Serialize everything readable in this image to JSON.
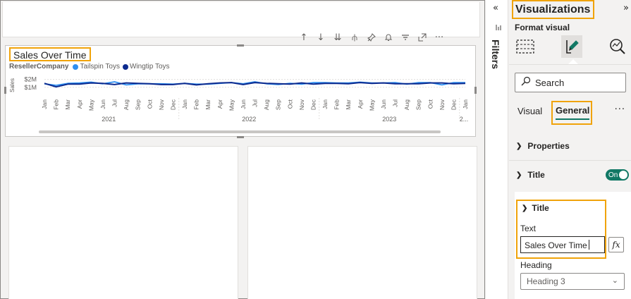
{
  "visual": {
    "title": "Sales Over Time",
    "legend": {
      "title": "ResellerCompany",
      "items": [
        {
          "label": "Tailspin Toys",
          "color": "#2e8ff0"
        },
        {
          "label": "Wingtip Toys",
          "color": "#0c2a8e"
        }
      ]
    },
    "toolbar_icons": [
      "arrow-up-icon",
      "arrow-down-icon",
      "double-arrow-down-icon",
      "hierarchy-icon",
      "pin-icon",
      "bell-icon",
      "filter-icon",
      "focus-mode-icon",
      "more-options-icon"
    ]
  },
  "chart_data": {
    "type": "line",
    "ylabel": "Sales",
    "y_ticks": [
      "$2M",
      "$1M"
    ],
    "ylim": [
      0,
      2.5
    ],
    "months": [
      "Jan",
      "Feb",
      "Mar",
      "Apr",
      "May",
      "Jun",
      "Jul",
      "Aug",
      "Sep",
      "Oct",
      "Nov",
      "Dec",
      "Jan",
      "Feb",
      "Mar",
      "Apr",
      "May",
      "Jun",
      "Jul",
      "Aug",
      "Sep",
      "Oct",
      "Nov",
      "Dec",
      "Jan",
      "Feb",
      "Mar",
      "Apr",
      "May",
      "Jun",
      "Jul",
      "Aug",
      "Sep",
      "Oct",
      "Nov",
      "Dec",
      "Jan"
    ],
    "years": [
      "2021",
      "2022",
      "2023",
      "2..."
    ],
    "series": [
      {
        "name": "Tailspin Toys",
        "color": "#2e8ff0",
        "values": [
          1.45,
          1.25,
          1.5,
          1.55,
          1.65,
          1.45,
          1.7,
          1.3,
          1.45,
          1.45,
          1.45,
          1.4,
          1.5,
          1.4,
          1.4,
          1.5,
          1.6,
          1.45,
          1.7,
          1.45,
          1.35,
          1.5,
          1.4,
          1.6,
          1.6,
          1.55,
          1.55,
          1.65,
          1.55,
          1.55,
          1.6,
          1.4,
          1.6,
          1.6,
          1.3,
          1.6,
          1.6
        ]
      },
      {
        "name": "Wingtip Toys",
        "color": "#0c2a8e",
        "values": [
          1.5,
          1.05,
          1.4,
          1.4,
          1.55,
          1.5,
          1.35,
          1.55,
          1.5,
          1.45,
          1.35,
          1.35,
          1.5,
          1.3,
          1.45,
          1.55,
          1.6,
          1.35,
          1.6,
          1.5,
          1.45,
          1.4,
          1.55,
          1.4,
          1.5,
          1.5,
          1.45,
          1.6,
          1.5,
          1.55,
          1.45,
          1.45,
          1.45,
          1.55,
          1.55,
          1.45,
          1.5
        ]
      }
    ]
  },
  "side_strip": {
    "filters_label": "Filters"
  },
  "pane": {
    "title": "Visualizations",
    "subtitle": "Format visual",
    "search_placeholder": "Search",
    "tabs": {
      "visual": "Visual",
      "general": "General"
    },
    "more": "···",
    "sections": {
      "properties": "Properties",
      "title": "Title"
    },
    "toggle": {
      "label": "On",
      "state": true
    },
    "title_card": {
      "header": "Title",
      "text_label": "Text",
      "text_value": "Sales Over Time",
      "fx_label": "fx",
      "heading_label": "Heading",
      "heading_value": "Heading 3"
    }
  },
  "colors": {
    "accent": "#117865",
    "highlight": "#f0a30a"
  }
}
